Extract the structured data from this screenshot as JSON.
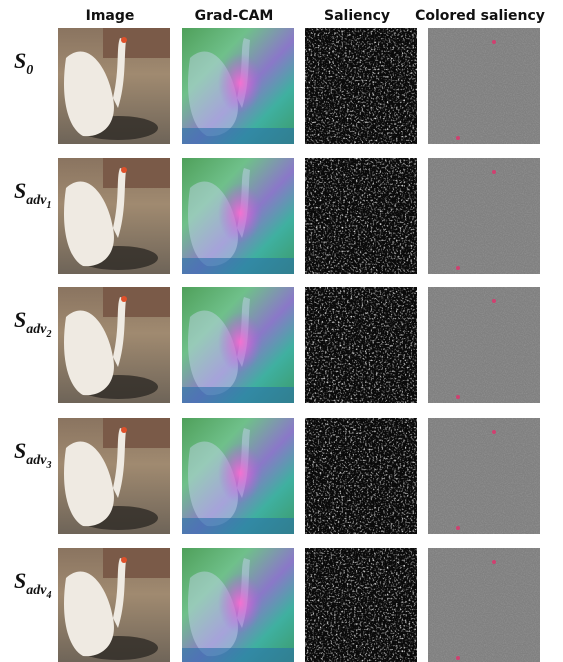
{
  "columns": [
    "Image",
    "Grad-CAM",
    "Saliency",
    "Colored saliency"
  ],
  "rows": [
    {
      "symbol": "S",
      "subscript": "0"
    },
    {
      "symbol": "S",
      "subscript": "adv",
      "index": "1"
    },
    {
      "symbol": "S",
      "subscript": "adv",
      "index": "2"
    },
    {
      "symbol": "S",
      "subscript": "adv",
      "index": "3"
    },
    {
      "symbol": "S",
      "subscript": "adv",
      "index": "4"
    }
  ]
}
